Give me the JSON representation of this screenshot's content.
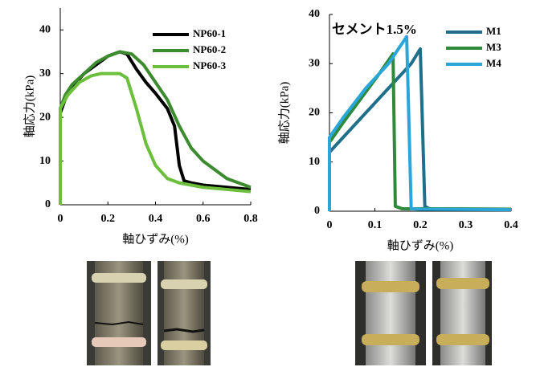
{
  "chart_data": [
    {
      "type": "line",
      "x_label": "軸ひずみ(%)",
      "y_label": "軸応力(kPa)",
      "legend": "upper right",
      "xlim": [
        0,
        0.8
      ],
      "ylim": [
        0,
        45
      ],
      "xticks": [
        0,
        0.2,
        0.4,
        0.6,
        0.8
      ],
      "yticks": [
        0,
        10,
        20,
        30,
        40
      ],
      "series": [
        {
          "name": "NP60-1",
          "color": "#000000",
          "x": [
            0,
            0,
            0.02,
            0.05,
            0.1,
            0.15,
            0.2,
            0.25,
            0.28,
            0.32,
            0.36,
            0.4,
            0.45,
            0.48,
            0.5,
            0.52,
            0.55,
            0.6,
            0.7,
            0.8
          ],
          "values": [
            0,
            21,
            24,
            27,
            30,
            32,
            34,
            35,
            34.5,
            31,
            28,
            25.5,
            22,
            18,
            9,
            5.5,
            5,
            4.5,
            4,
            3.5
          ]
        },
        {
          "name": "NP60-2",
          "color": "#3d8b2f",
          "x": [
            0,
            0,
            0.02,
            0.05,
            0.1,
            0.15,
            0.2,
            0.25,
            0.3,
            0.35,
            0.4,
            0.45,
            0.5,
            0.55,
            0.6,
            0.7,
            0.8
          ],
          "values": [
            0,
            22,
            25,
            27.5,
            30,
            32.5,
            34,
            35,
            34.5,
            32,
            28,
            24,
            18,
            13,
            10,
            6,
            4
          ]
        },
        {
          "name": "NP60-3",
          "color": "#6cbf3c",
          "x": [
            0,
            0,
            0.03,
            0.08,
            0.13,
            0.17,
            0.25,
            0.28,
            0.32,
            0.36,
            0.4,
            0.45,
            0.5,
            0.6,
            0.7,
            0.8
          ],
          "values": [
            0,
            22,
            25,
            28,
            29.5,
            30,
            30,
            29,
            22,
            14,
            9,
            6,
            5,
            4,
            3.5,
            3
          ]
        }
      ]
    },
    {
      "type": "line",
      "x_label": "軸ひずみ(%)",
      "y_label": "軸応力(kPa)",
      "annotation": "セメント1.5%",
      "legend": "upper right",
      "xlim": [
        0,
        0.4
      ],
      "ylim": [
        0,
        40
      ],
      "xticks": [
        0,
        0.1,
        0.2,
        0.3,
        0.4
      ],
      "yticks": [
        0,
        10,
        20,
        30,
        40
      ],
      "series": [
        {
          "name": "M1",
          "color": "#1f6f8b",
          "x": [
            0,
            0,
            0.03,
            0.08,
            0.13,
            0.18,
            0.2,
            0.21,
            0.22,
            0.4
          ],
          "values": [
            0,
            12,
            15,
            20,
            25,
            30,
            33,
            1,
            0.5,
            0.4
          ]
        },
        {
          "name": "M3",
          "color": "#2e8a3a",
          "x": [
            0,
            0,
            0.03,
            0.07,
            0.11,
            0.14,
            0.145,
            0.16,
            0.4
          ],
          "values": [
            0,
            14,
            18,
            23,
            28,
            32,
            1,
            0.5,
            0.4
          ]
        },
        {
          "name": "M4",
          "color": "#2aa7d8",
          "x": [
            0,
            0,
            0.03,
            0.08,
            0.13,
            0.17,
            0.18,
            0.2,
            0.4
          ],
          "values": [
            0,
            15,
            19,
            25,
            30,
            35.5,
            0.5,
            0.4,
            0.3
          ]
        }
      ]
    }
  ]
}
